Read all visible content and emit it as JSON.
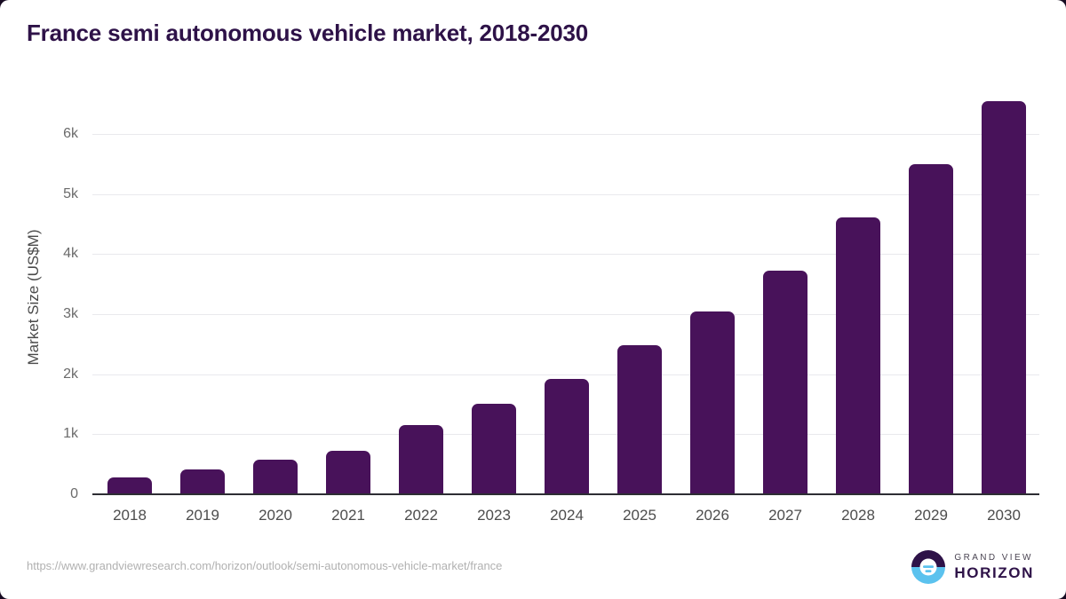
{
  "title": "France semi autonomous vehicle market, 2018-2030",
  "colors": {
    "bar": "#48125a",
    "title_text": "#2e1248",
    "gridline": "#e9e9ed",
    "axis_line": "#2d2d33",
    "tick_text": "#6b6b6b",
    "xlabel_text": "#4d4d4d",
    "url_text": "#b1b1b1",
    "logo_purple": "#2e1248",
    "logo_blue": "#5bc2ee"
  },
  "chart_data": {
    "type": "bar",
    "title": "France semi autonomous vehicle market, 2018-2030",
    "categories": [
      "2018",
      "2019",
      "2020",
      "2021",
      "2022",
      "2023",
      "2024",
      "2025",
      "2026",
      "2027",
      "2028",
      "2029",
      "2030"
    ],
    "values": [
      280,
      415,
      570,
      730,
      1160,
      1510,
      1920,
      2475,
      3040,
      3720,
      4610,
      5490,
      6550
    ],
    "xlabel": "",
    "ylabel": "Market Size (US$M)",
    "ylim": [
      0,
      6800
    ],
    "yticks": [
      {
        "label": "0",
        "value": 0
      },
      {
        "label": "1k",
        "value": 1000
      },
      {
        "label": "2k",
        "value": 2000
      },
      {
        "label": "3k",
        "value": 3000
      },
      {
        "label": "4k",
        "value": 4000
      },
      {
        "label": "5k",
        "value": 5000
      },
      {
        "label": "6k",
        "value": 6000
      }
    ],
    "grid": "horizontal",
    "legend": "none"
  },
  "footer": {
    "source_url": "https://www.grandviewresearch.com/horizon/outlook/semi-autonomous-vehicle-market/france",
    "logo": {
      "line1": "GRAND VIEW",
      "line2": "HORIZON"
    }
  }
}
